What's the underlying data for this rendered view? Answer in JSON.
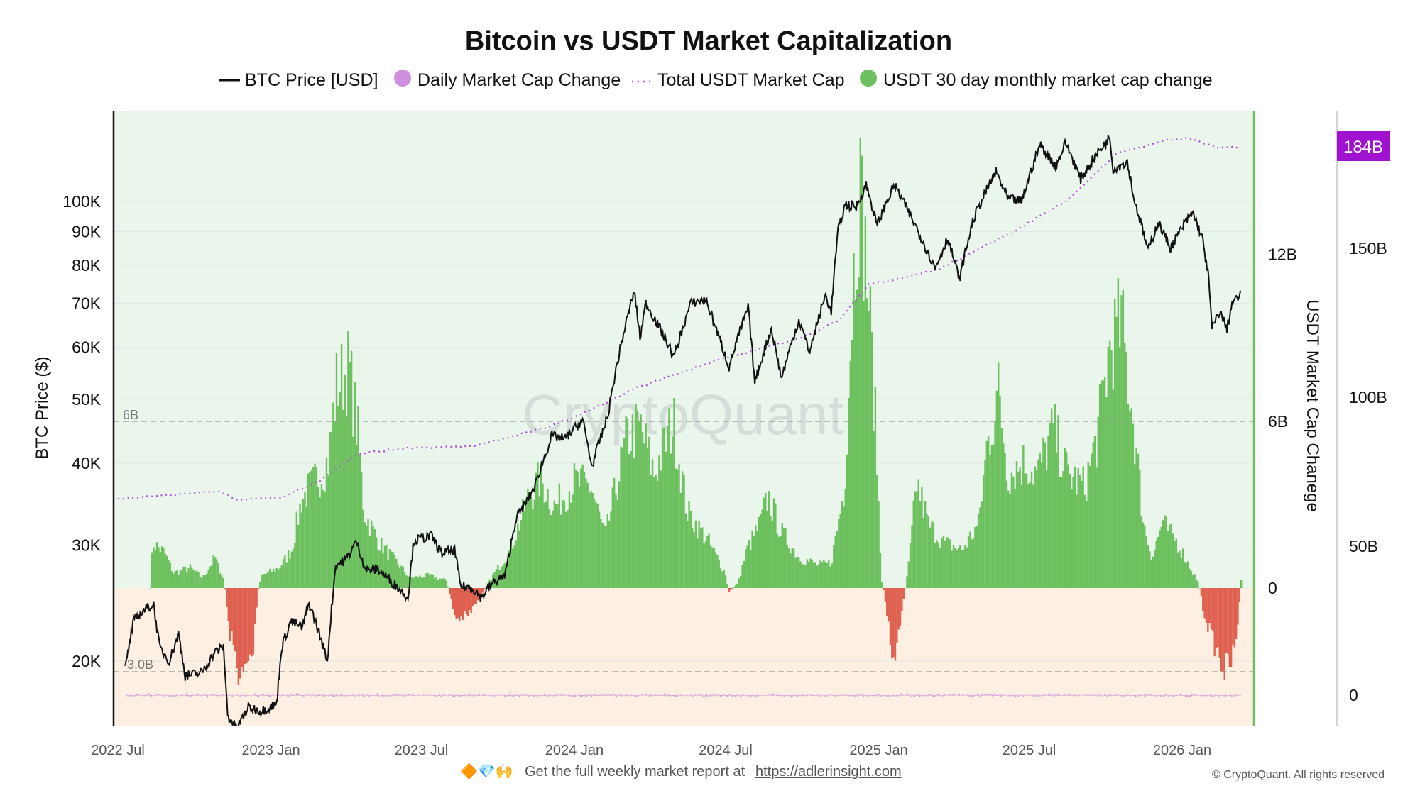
{
  "chart_data": {
    "type": "line+bar",
    "title": "Bitcoin vs USDT Market Capitalization",
    "legend": {
      "placement": "top-center",
      "entries": [
        {
          "label": "BTC Price [USD]",
          "color": "#111111",
          "style": "line"
        },
        {
          "label": "Daily Market Cap Change",
          "color": "#d08ee0",
          "style": "dot"
        },
        {
          "label": "Total USDT Market Cap",
          "color": "#b04ad8",
          "style": "dotted"
        },
        {
          "label": "USDT 30 day monthly market cap change",
          "color": "#6cc05e",
          "style": "dot"
        }
      ]
    },
    "x_ticks": [
      "2022 Jul",
      "2023 Jan",
      "2023 Jul",
      "2024 Jan",
      "2024 Jul",
      "2025 Jan",
      "2025 Jul",
      "2026 Jan"
    ],
    "x_tick_dates": [
      "2022-07-01",
      "2023-01-01",
      "2023-07-01",
      "2024-01-01",
      "2024-07-01",
      "2025-01-01",
      "2025-07-01",
      "2026-01-01"
    ],
    "x_range": [
      "2022-07-01",
      "2026-03-25"
    ],
    "y_left": {
      "label": "BTC Price ($)",
      "scale": "log",
      "range": [
        15900,
        137000
      ],
      "ticks": [
        {
          "v": 100000,
          "t": "100K"
        },
        {
          "v": 90000,
          "t": "90K"
        },
        {
          "v": 80000,
          "t": "80K"
        },
        {
          "v": 70000,
          "t": "70K"
        },
        {
          "v": 60000,
          "t": "60K"
        },
        {
          "v": 50000,
          "t": "50K"
        },
        {
          "v": 40000,
          "t": "40K"
        },
        {
          "v": 30000,
          "t": "30K"
        },
        {
          "v": 20000,
          "t": "20K"
        }
      ]
    },
    "y_right1": {
      "label": "USDT Market Cap Chanege",
      "range_B": [
        -5.0,
        17.1
      ],
      "ticks": [
        {
          "v": 12,
          "t": "12B"
        },
        {
          "v": 6,
          "t": "6B"
        },
        {
          "v": 0,
          "t": "0"
        }
      ]
    },
    "y_right2": {
      "range_B": [
        -5,
        195.7
      ],
      "ticks": [
        {
          "v": 150,
          "t": "150B"
        },
        {
          "v": 100,
          "t": "100B"
        },
        {
          "v": 50,
          "t": "50B"
        },
        {
          "v": 0,
          "t": "0"
        }
      ],
      "current_value_label": "184B"
    },
    "reference_lines": [
      {
        "v": 6,
        "label": "6B"
      },
      {
        "v": -3.0,
        "label": "-3.0B"
      }
    ],
    "watermark": "CryptoQuant",
    "btc_price": [
      [
        "2022-07-10",
        19500
      ],
      [
        "2022-07-20",
        23000
      ],
      [
        "2022-07-30",
        23800
      ],
      [
        "2022-08-13",
        24400
      ],
      [
        "2022-08-20",
        21000
      ],
      [
        "2022-09-01",
        20000
      ],
      [
        "2022-09-12",
        22000
      ],
      [
        "2022-09-20",
        19000
      ],
      [
        "2022-10-10",
        19200
      ],
      [
        "2022-10-25",
        20600
      ],
      [
        "2022-11-05",
        21000
      ],
      [
        "2022-11-10",
        16500
      ],
      [
        "2022-11-21",
        15800
      ],
      [
        "2022-12-05",
        17000
      ],
      [
        "2022-12-20",
        16800
      ],
      [
        "2023-01-08",
        17200
      ],
      [
        "2023-01-14",
        21000
      ],
      [
        "2023-01-25",
        23000
      ],
      [
        "2023-02-08",
        22500
      ],
      [
        "2023-02-16",
        24500
      ],
      [
        "2023-03-10",
        20000
      ],
      [
        "2023-03-20",
        28000
      ],
      [
        "2023-04-01",
        28500
      ],
      [
        "2023-04-14",
        30400
      ],
      [
        "2023-04-25",
        27500
      ],
      [
        "2023-05-10",
        27600
      ],
      [
        "2023-05-25",
        26500
      ],
      [
        "2023-06-15",
        25000
      ],
      [
        "2023-06-22",
        30500
      ],
      [
        "2023-07-13",
        31000
      ],
      [
        "2023-07-25",
        29200
      ],
      [
        "2023-08-10",
        29500
      ],
      [
        "2023-08-17",
        26000
      ],
      [
        "2023-09-01",
        25800
      ],
      [
        "2023-09-11",
        25000
      ],
      [
        "2023-09-25",
        26300
      ],
      [
        "2023-10-10",
        27000
      ],
      [
        "2023-10-23",
        33000
      ],
      [
        "2023-11-05",
        35000
      ],
      [
        "2023-11-15",
        37000
      ],
      [
        "2023-12-05",
        44000
      ],
      [
        "2023-12-20",
        43500
      ],
      [
        "2024-01-11",
        46500
      ],
      [
        "2024-01-22",
        39500
      ],
      [
        "2024-02-10",
        47000
      ],
      [
        "2024-02-28",
        62000
      ],
      [
        "2024-03-13",
        73000
      ],
      [
        "2024-03-20",
        62000
      ],
      [
        "2024-03-27",
        70000
      ],
      [
        "2024-04-13",
        64000
      ],
      [
        "2024-04-30",
        58000
      ],
      [
        "2024-05-20",
        70000
      ],
      [
        "2024-06-07",
        71000
      ],
      [
        "2024-06-25",
        61000
      ],
      [
        "2024-07-05",
        56000
      ],
      [
        "2024-07-28",
        69000
      ],
      [
        "2024-08-05",
        53000
      ],
      [
        "2024-08-25",
        64000
      ],
      [
        "2024-09-06",
        53800
      ],
      [
        "2024-09-27",
        66000
      ],
      [
        "2024-10-10",
        59000
      ],
      [
        "2024-10-29",
        72000
      ],
      [
        "2024-11-05",
        68000
      ],
      [
        "2024-11-13",
        90000
      ],
      [
        "2024-11-22",
        99000
      ],
      [
        "2024-12-05",
        98000
      ],
      [
        "2024-12-17",
        106000
      ],
      [
        "2024-12-30",
        92000
      ],
      [
        "2025-01-20",
        106000
      ],
      [
        "2025-02-03",
        98000
      ],
      [
        "2025-02-25",
        86000
      ],
      [
        "2025-03-10",
        79000
      ],
      [
        "2025-03-25",
        88000
      ],
      [
        "2025-04-08",
        76000
      ],
      [
        "2025-04-25",
        94000
      ],
      [
        "2025-05-22",
        111000
      ],
      [
        "2025-06-05",
        101000
      ],
      [
        "2025-06-22",
        100000
      ],
      [
        "2025-07-14",
        122000
      ],
      [
        "2025-08-02",
        113000
      ],
      [
        "2025-08-14",
        123000
      ],
      [
        "2025-09-01",
        108000
      ],
      [
        "2025-09-18",
        117000
      ],
      [
        "2025-10-06",
        125000
      ],
      [
        "2025-10-10",
        112000
      ],
      [
        "2025-10-27",
        115000
      ],
      [
        "2025-11-04",
        101000
      ],
      [
        "2025-11-21",
        84000
      ],
      [
        "2025-12-03",
        93000
      ],
      [
        "2025-12-18",
        85000
      ],
      [
        "2026-01-05",
        93000
      ],
      [
        "2026-01-14",
        96000
      ],
      [
        "2026-01-25",
        88000
      ],
      [
        "2026-02-01",
        78000
      ],
      [
        "2026-02-06",
        64000
      ],
      [
        "2026-02-15",
        68000
      ],
      [
        "2026-02-24",
        64000
      ],
      [
        "2026-03-02",
        70000
      ],
      [
        "2026-03-12",
        72000
      ]
    ],
    "usdt_total_market_cap_B": [
      [
        "2022-07-01",
        66
      ],
      [
        "2022-11-01",
        68.5
      ],
      [
        "2022-11-20",
        65.5
      ],
      [
        "2023-01-15",
        66.5
      ],
      [
        "2023-03-01",
        72
      ],
      [
        "2023-04-15",
        81
      ],
      [
        "2023-06-15",
        83
      ],
      [
        "2023-09-01",
        83.5
      ],
      [
        "2023-12-01",
        90
      ],
      [
        "2024-01-15",
        95
      ],
      [
        "2024-03-15",
        103
      ],
      [
        "2024-06-15",
        112
      ],
      [
        "2024-10-01",
        120
      ],
      [
        "2024-11-15",
        126
      ],
      [
        "2024-12-20",
        138
      ],
      [
        "2025-01-15",
        139
      ],
      [
        "2025-03-15",
        143
      ],
      [
        "2025-06-15",
        156
      ],
      [
        "2025-08-15",
        166
      ],
      [
        "2025-10-15",
        182
      ],
      [
        "2025-12-10",
        186
      ],
      [
        "2026-01-10",
        187
      ],
      [
        "2026-02-10",
        184
      ],
      [
        "2026-03-12",
        184
      ]
    ],
    "usdt_30d_change_B": [
      [
        "2022-08-08",
        0
      ],
      [
        "2022-08-11",
        1.8
      ],
      [
        "2022-08-25",
        1.4
      ],
      [
        "2022-09-05",
        0.6
      ],
      [
        "2022-09-25",
        0.8
      ],
      [
        "2022-10-10",
        0.4
      ],
      [
        "2022-10-25",
        1.2
      ],
      [
        "2022-11-05",
        0.3
      ],
      [
        "2022-11-10",
        -1.5
      ],
      [
        "2022-11-25",
        -3.7
      ],
      [
        "2022-12-10",
        -2.5
      ],
      [
        "2022-12-15",
        -0.2
      ],
      [
        "2022-12-20",
        0.5
      ],
      [
        "2023-01-10",
        0.8
      ],
      [
        "2023-01-25",
        1.5
      ],
      [
        "2023-02-06",
        3.5
      ],
      [
        "2023-02-22",
        4.2
      ],
      [
        "2023-03-10",
        5
      ],
      [
        "2023-03-20",
        8
      ],
      [
        "2023-04-04",
        8.7
      ],
      [
        "2023-04-15",
        6
      ],
      [
        "2023-04-22",
        3
      ],
      [
        "2023-05-10",
        1.8
      ],
      [
        "2023-06-01",
        1
      ],
      [
        "2023-06-16",
        0.4
      ],
      [
        "2023-07-10",
        0.5
      ],
      [
        "2023-07-30",
        0.3
      ],
      [
        "2023-08-10",
        -1.2
      ],
      [
        "2023-08-25",
        -1.1
      ],
      [
        "2023-09-06",
        -0.5
      ],
      [
        "2023-09-22",
        0.4
      ],
      [
        "2023-10-15",
        1.5
      ],
      [
        "2023-11-05",
        3.5
      ],
      [
        "2023-11-20",
        4.3
      ],
      [
        "2023-12-08",
        3.2
      ],
      [
        "2023-12-30",
        4.2
      ],
      [
        "2024-01-20",
        4
      ],
      [
        "2024-02-06",
        2
      ],
      [
        "2024-03-04",
        6
      ],
      [
        "2024-03-20",
        6.3
      ],
      [
        "2024-04-05",
        4.5
      ],
      [
        "2024-04-28",
        6.6
      ],
      [
        "2024-05-15",
        3
      ],
      [
        "2024-06-10",
        1.8
      ],
      [
        "2024-07-01",
        0.5
      ],
      [
        "2024-07-03",
        -0.2
      ],
      [
        "2024-07-15",
        0.2
      ],
      [
        "2024-07-25",
        1.5
      ],
      [
        "2024-08-10",
        2.5
      ],
      [
        "2024-08-20",
        3.6
      ],
      [
        "2024-09-05",
        2.2
      ],
      [
        "2024-09-27",
        1.2
      ],
      [
        "2024-10-20",
        0.9
      ],
      [
        "2024-11-04",
        1
      ],
      [
        "2024-11-20",
        4
      ],
      [
        "2024-11-30",
        12
      ],
      [
        "2024-12-08",
        16
      ],
      [
        "2024-12-18",
        12
      ],
      [
        "2024-12-28",
        6
      ],
      [
        "2025-01-03",
        0.5
      ],
      [
        "2025-01-08",
        -0.5
      ],
      [
        "2025-01-19",
        -3.2
      ],
      [
        "2025-01-27",
        -1
      ],
      [
        "2025-02-04",
        0.6
      ],
      [
        "2025-02-15",
        4.2
      ],
      [
        "2025-03-01",
        2.5
      ],
      [
        "2025-03-20",
        1.8
      ],
      [
        "2025-04-10",
        1.5
      ],
      [
        "2025-04-30",
        2.5
      ],
      [
        "2025-05-10",
        5.5
      ],
      [
        "2025-05-24",
        7.7
      ],
      [
        "2025-06-05",
        4.5
      ],
      [
        "2025-06-25",
        5
      ],
      [
        "2025-07-10",
        4.5
      ],
      [
        "2025-07-29",
        6.3
      ],
      [
        "2025-08-15",
        4.5
      ],
      [
        "2025-09-05",
        4
      ],
      [
        "2025-09-20",
        6
      ],
      [
        "2025-10-05",
        9.5
      ],
      [
        "2025-10-19",
        10.5
      ],
      [
        "2025-11-01",
        7
      ],
      [
        "2025-11-15",
        2.5
      ],
      [
        "2025-11-25",
        1.2
      ],
      [
        "2025-12-07",
        2.6
      ],
      [
        "2025-12-25",
        1.8
      ],
      [
        "2026-01-10",
        0.8
      ],
      [
        "2026-01-20",
        0.2
      ],
      [
        "2026-01-25",
        -0.8
      ],
      [
        "2026-02-05",
        -2
      ],
      [
        "2026-02-21",
        -3.3
      ],
      [
        "2026-03-05",
        -2.5
      ],
      [
        "2026-03-10",
        -0.5
      ],
      [
        "2026-03-12",
        0.3
      ]
    ],
    "colors": {
      "positive": "#6cc05e",
      "negative": "#e06050",
      "btc": "#111111",
      "usdt_cap": "#b04ad8",
      "daily": "#d08ee0",
      "bg_positive": "#eaf6ec",
      "bg_negative": "#fdf0e2",
      "badge": "#a012d0"
    }
  },
  "footer": {
    "emoji": "🔶💎🙌",
    "text": "Get the full weekly market report at",
    "link": "https://adlerinsight.com",
    "copyright": "© CryptoQuant. All rights reserved"
  }
}
